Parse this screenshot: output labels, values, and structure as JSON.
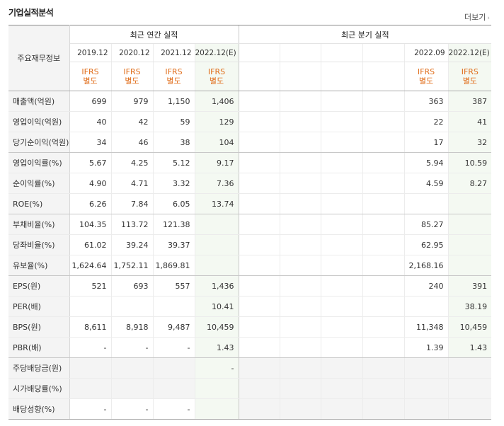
{
  "title": "기업실적분석",
  "more_label": "더보기",
  "more_arrow": "›",
  "label_header": "주요재무정보",
  "annual_header": "최근 연간 실적",
  "quarter_header": "최근 분기 실적",
  "annual_periods": [
    "2019.12",
    "2020.12",
    "2021.12",
    "2022.12(E)"
  ],
  "quarter_periods": [
    "",
    "",
    "",
    "",
    "2022.09",
    "2022.12(E)"
  ],
  "std_line1": "IFRS",
  "std_line2": "별도",
  "rows": [
    {
      "name": "매출액(억원)",
      "annual": [
        "699",
        "979",
        "1,150",
        "1,406"
      ],
      "quarter": [
        "",
        "",
        "",
        "",
        "363",
        "387"
      ]
    },
    {
      "name": "영업이익(억원)",
      "annual": [
        "40",
        "42",
        "59",
        "129"
      ],
      "quarter": [
        "",
        "",
        "",
        "",
        "22",
        "41"
      ]
    },
    {
      "name": "당기순이익(억원)",
      "annual": [
        "34",
        "46",
        "38",
        "104"
      ],
      "quarter": [
        "",
        "",
        "",
        "",
        "17",
        "32"
      ]
    },
    {
      "name": "영업이익률(%)",
      "annual": [
        "5.67",
        "4.25",
        "5.12",
        "9.17"
      ],
      "quarter": [
        "",
        "",
        "",
        "",
        "5.94",
        "10.59"
      ]
    },
    {
      "name": "순이익률(%)",
      "annual": [
        "4.90",
        "4.71",
        "3.32",
        "7.36"
      ],
      "quarter": [
        "",
        "",
        "",
        "",
        "4.59",
        "8.27"
      ]
    },
    {
      "name": "ROE(%)",
      "annual": [
        "6.26",
        "7.84",
        "6.05",
        "13.74"
      ],
      "quarter": [
        "",
        "",
        "",
        "",
        "",
        ""
      ]
    },
    {
      "name": "부채비율(%)",
      "annual": [
        "104.35",
        "113.72",
        "121.38",
        ""
      ],
      "quarter": [
        "",
        "",
        "",
        "",
        "85.27",
        ""
      ]
    },
    {
      "name": "당좌비율(%)",
      "annual": [
        "61.02",
        "39.24",
        "39.37",
        ""
      ],
      "quarter": [
        "",
        "",
        "",
        "",
        "62.95",
        ""
      ]
    },
    {
      "name": "유보율(%)",
      "annual": [
        "1,624.64",
        "1,752.11",
        "1,869.81",
        ""
      ],
      "quarter": [
        "",
        "",
        "",
        "",
        "2,168.16",
        ""
      ]
    },
    {
      "name": "EPS(원)",
      "annual": [
        "521",
        "693",
        "557",
        "1,436"
      ],
      "quarter": [
        "",
        "",
        "",
        "",
        "240",
        "391"
      ]
    },
    {
      "name": "PER(배)",
      "annual": [
        "",
        "",
        "",
        "10.41"
      ],
      "quarter": [
        "",
        "",
        "",
        "",
        "",
        "38.19"
      ]
    },
    {
      "name": "BPS(원)",
      "annual": [
        "8,611",
        "8,918",
        "9,487",
        "10,459"
      ],
      "quarter": [
        "",
        "",
        "",
        "",
        "11,348",
        "10,459"
      ]
    },
    {
      "name": "PBR(배)",
      "annual": [
        "-",
        "-",
        "-",
        "1.43"
      ],
      "quarter": [
        "",
        "",
        "",
        "",
        "1.39",
        "1.43"
      ]
    },
    {
      "name": "주당배당금(원)",
      "annual": [
        "",
        "",
        "",
        "-"
      ],
      "quarter": [
        "",
        "",
        "",
        "",
        "",
        ""
      ]
    },
    {
      "name": "시가배당률(%)",
      "annual": [
        "",
        "",
        "",
        ""
      ],
      "quarter": [
        "",
        "",
        "",
        "",
        "",
        ""
      ]
    },
    {
      "name": "배당성향(%)",
      "annual": [
        "-",
        "-",
        "-",
        ""
      ],
      "quarter": [
        "",
        "",
        "",
        "",
        "",
        ""
      ]
    }
  ]
}
